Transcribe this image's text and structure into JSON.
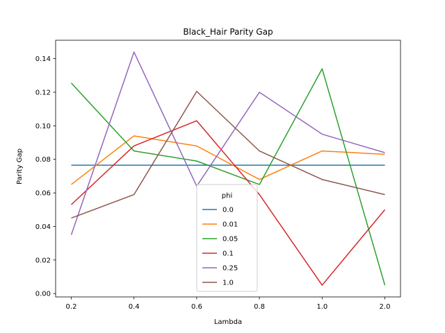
{
  "chart_data": {
    "type": "line",
    "title": "Black_Hair Parity Gap",
    "xlabel": "Lambda",
    "ylabel": "Parity Gap",
    "categories": [
      "0.2",
      "0.4",
      "0.6",
      "0.8",
      "1.0",
      "2.0"
    ],
    "ylim": [
      -0.002,
      0.151
    ],
    "yticks": [
      "0.00",
      "0.02",
      "0.04",
      "0.06",
      "0.08",
      "0.10",
      "0.12",
      "0.14"
    ],
    "grid": false,
    "legend": {
      "title": "phi",
      "placement": "lower-center"
    },
    "series": [
      {
        "name": "0.0",
        "color": "#1f77b4",
        "values": [
          0.0765,
          0.0765,
          0.0765,
          0.0765,
          0.0765,
          0.0765
        ]
      },
      {
        "name": "0.01",
        "color": "#ff7f0e",
        "values": [
          0.065,
          0.094,
          0.088,
          0.068,
          0.085,
          0.083
        ]
      },
      {
        "name": "0.05",
        "color": "#2ca02c",
        "values": [
          0.1255,
          0.085,
          0.079,
          0.065,
          0.134,
          0.005
        ]
      },
      {
        "name": "0.1",
        "color": "#d62728",
        "values": [
          0.053,
          0.088,
          0.103,
          0.059,
          0.005,
          0.05
        ]
      },
      {
        "name": "0.25",
        "color": "#9467bd",
        "values": [
          0.035,
          0.144,
          0.064,
          0.12,
          0.095,
          0.084
        ]
      },
      {
        "name": "1.0",
        "color": "#8c564b",
        "values": [
          0.045,
          0.059,
          0.1205,
          0.085,
          0.068,
          0.059
        ]
      }
    ]
  }
}
